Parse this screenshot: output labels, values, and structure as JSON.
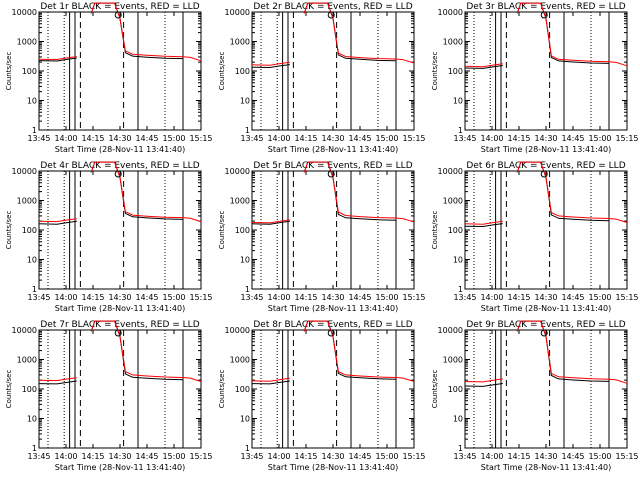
{
  "chart_data": {
    "type": "line",
    "layout_grid": "3x3",
    "xaxis": {
      "ticks": [
        "13:45",
        "14:00",
        "14:15",
        "14:30",
        "14:45",
        "15:00",
        "15:15"
      ],
      "tick_minutes": [
        0,
        15,
        30,
        45,
        60,
        75,
        90
      ],
      "xlim_minutes": [
        0,
        90
      ],
      "xlabel": "Start Time (28-Nov-11 13:41:40)"
    },
    "yaxis": {
      "scale": "log",
      "ylim": [
        1,
        10000
      ],
      "ticks": [
        "1",
        "10",
        "100",
        "1000",
        "10000"
      ],
      "ylabel": "Counts/sec"
    },
    "legend_text": "BLACK = Events, RED = LLD",
    "colors": {
      "events": "#000000",
      "lld": "#ff0000",
      "axes": "#000000"
    },
    "markers": {
      "dotted_minutes": [
        5,
        14,
        70
      ],
      "solid_minutes": [
        17,
        20,
        55,
        80
      ],
      "dashed_minutes": [
        23,
        47
      ],
      "data_gap_minutes": [
        21,
        29
      ]
    },
    "panels": [
      {
        "title": "Det 1r",
        "events_mid": 250,
        "lld_mid": 280,
        "events_post": 320,
        "lld_post": 370
      },
      {
        "title": "Det 2r",
        "events_mid": 150,
        "lld_mid": 180,
        "events_post": 270,
        "lld_post": 310
      },
      {
        "title": "Det 3r",
        "events_mid": 140,
        "lld_mid": 160,
        "events_post": 220,
        "lld_post": 250
      },
      {
        "title": "Det 4r",
        "events_mid": 180,
        "lld_mid": 220,
        "events_post": 280,
        "lld_post": 320
      },
      {
        "title": "Det 5r",
        "events_mid": 180,
        "lld_mid": 200,
        "events_post": 260,
        "lld_post": 310
      },
      {
        "title": "Det 6r",
        "events_mid": 150,
        "lld_mid": 180,
        "events_post": 250,
        "lld_post": 300
      },
      {
        "title": "Det 7r",
        "events_mid": 170,
        "lld_mid": 220,
        "events_post": 250,
        "lld_post": 300
      },
      {
        "title": "Det 8r",
        "events_mid": 170,
        "lld_mid": 210,
        "events_post": 260,
        "lld_post": 300
      },
      {
        "title": "Det 9r",
        "events_mid": 140,
        "lld_mid": 200,
        "events_post": 220,
        "lld_post": 260
      }
    ]
  }
}
